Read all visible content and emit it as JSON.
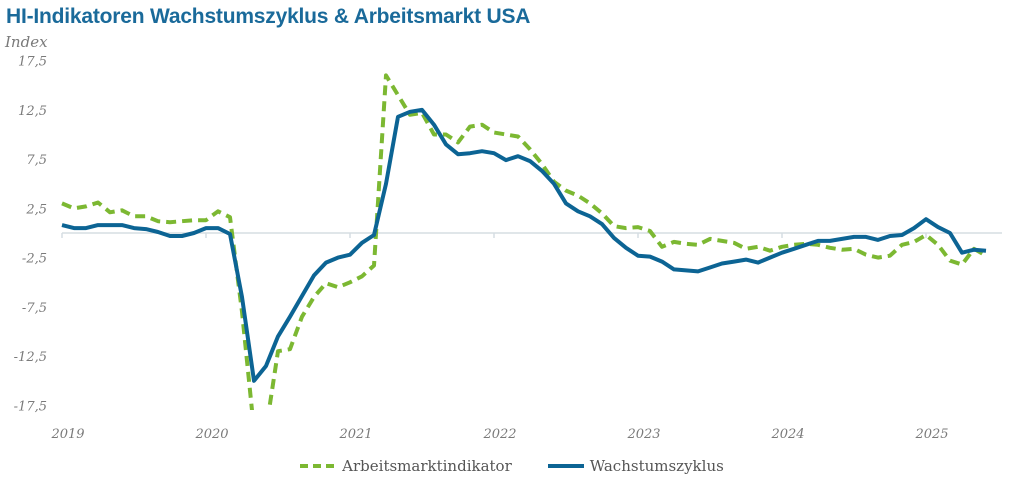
{
  "chart_data": {
    "type": "line",
    "title": "HI-Indikatoren Wachstumszyklus & Arbeitsmarkt USA",
    "ylabel": "Index",
    "xlabel": "",
    "ylim": [
      -17.5,
      17.5
    ],
    "yticks": [
      "17,5",
      "12,5",
      "7,5",
      "2,5",
      "-2,5",
      "-7,5",
      "-12,5",
      "-17,5"
    ],
    "ytick_values": [
      17.5,
      12.5,
      7.5,
      2.5,
      -2.5,
      -7.5,
      -12.5,
      -17.5
    ],
    "xticks": [
      "2019",
      "2020",
      "2021",
      "2022",
      "2023",
      "2024",
      "2025"
    ],
    "x_start": "2019-01",
    "frequency": "monthly",
    "legend_position": "bottom",
    "series": [
      {
        "name": "Arbeitsmarktindikator",
        "color": "#7cb832",
        "style": "dashed",
        "values": [
          3.0,
          2.5,
          2.7,
          3.1,
          2.1,
          2.3,
          1.7,
          1.7,
          1.2,
          1.1,
          1.2,
          1.3,
          1.3,
          2.2,
          1.6,
          -8.0,
          -20.0,
          -20.0,
          -12.0,
          -11.8,
          -8.5,
          -6.5,
          -5.1,
          -5.5,
          -5.0,
          -4.4,
          -3.3,
          16.0,
          14.0,
          12.0,
          12.2,
          10.0,
          10.0,
          9.2,
          10.8,
          11.0,
          10.2,
          10.0,
          9.8,
          8.5,
          7.0,
          5.2,
          4.3,
          3.8,
          3.0,
          2.0,
          0.7,
          0.5,
          0.6,
          0.2,
          -1.4,
          -0.9,
          -1.1,
          -1.2,
          -0.6,
          -0.8,
          -1.0,
          -1.6,
          -1.4,
          -1.8,
          -1.4,
          -1.2,
          -1.1,
          -1.2,
          -1.5,
          -1.7,
          -1.6,
          -2.2,
          -2.5,
          -2.3,
          -1.2,
          -0.9,
          -0.2,
          -1.2,
          -2.8,
          -3.2,
          -1.6,
          -2.3
        ]
      },
      {
        "name": "Wachstumszyklus",
        "color": "#0c6494",
        "style": "solid",
        "values": [
          0.8,
          0.5,
          0.5,
          0.8,
          0.8,
          0.8,
          0.5,
          0.4,
          0.1,
          -0.3,
          -0.3,
          0.0,
          0.5,
          0.5,
          -0.1,
          -6.5,
          -15.0,
          -13.5,
          -10.5,
          -8.5,
          -6.4,
          -4.3,
          -3.0,
          -2.5,
          -2.2,
          -1.0,
          -0.2,
          5.0,
          11.8,
          12.3,
          12.5,
          11.0,
          9.0,
          8.0,
          8.1,
          8.3,
          8.1,
          7.4,
          7.8,
          7.3,
          6.3,
          5.0,
          3.0,
          2.2,
          1.7,
          0.9,
          -0.5,
          -1.5,
          -2.3,
          -2.4,
          -2.9,
          -3.7,
          -3.8,
          -3.9,
          -3.5,
          -3.1,
          -2.9,
          -2.7,
          -3.0,
          -2.5,
          -2.0,
          -1.6,
          -1.2,
          -0.8,
          -0.8,
          -0.6,
          -0.4,
          -0.4,
          -0.7,
          -0.3,
          -0.2,
          0.5,
          1.4,
          0.6,
          0.0,
          -2.0,
          -1.7,
          -1.8
        ]
      }
    ]
  }
}
